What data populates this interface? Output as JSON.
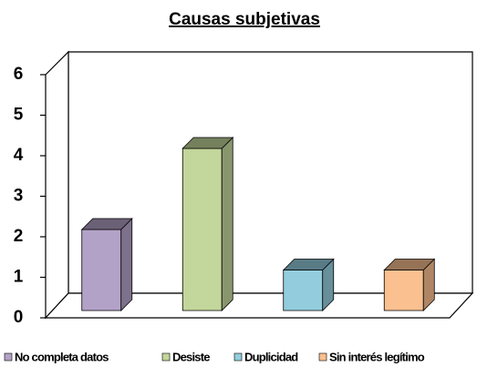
{
  "chart_data": {
    "type": "bar3d",
    "title": "Causas subjetivas",
    "categories": [
      "No completa datos",
      "Desiste",
      "Duplicidad",
      "Sin interés legítimo"
    ],
    "values": [
      2,
      4,
      1,
      1
    ],
    "colors": [
      "#b3a2c7",
      "#c3d69b",
      "#93cddd",
      "#fac090"
    ],
    "ylim": [
      0,
      6
    ],
    "yticks": [
      0,
      1,
      2,
      3,
      4,
      5,
      6
    ],
    "legend": "bottom"
  }
}
